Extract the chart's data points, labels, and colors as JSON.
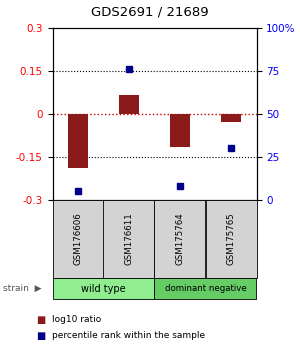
{
  "title": "GDS2691 / 21689",
  "samples": [
    "GSM176606",
    "GSM176611",
    "GSM175764",
    "GSM175765"
  ],
  "log10_ratio": [
    -0.19,
    0.065,
    -0.115,
    -0.03
  ],
  "percentile_rank": [
    5,
    76,
    8,
    30
  ],
  "groups": [
    {
      "label": "wild type",
      "samples": [
        0,
        1
      ],
      "color": "#90ee90"
    },
    {
      "label": "dominant negative",
      "samples": [
        2,
        3
      ],
      "color": "#66cc66"
    }
  ],
  "ylim_left": [
    -0.3,
    0.3
  ],
  "ylim_right": [
    0,
    100
  ],
  "yticks_left": [
    -0.3,
    -0.15,
    0,
    0.15,
    0.3
  ],
  "yticks_right": [
    0,
    25,
    50,
    75,
    100
  ],
  "ytick_labels_right": [
    "0",
    "25",
    "50",
    "75",
    "100%"
  ],
  "bar_color": "#8b1a1a",
  "dot_color": "#00008b",
  "zero_line_color": "#cc0000",
  "legend_bar_label": "log10 ratio",
  "legend_dot_label": "percentile rank within the sample"
}
